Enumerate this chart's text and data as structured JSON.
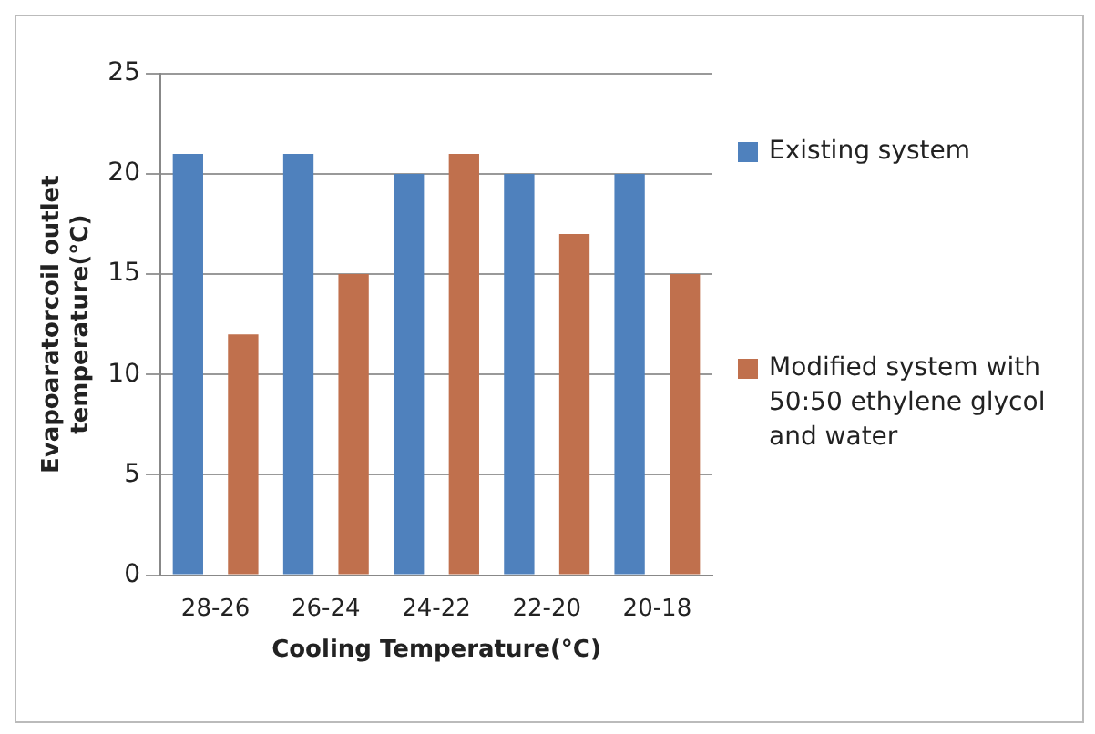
{
  "chart_data": {
    "type": "bar",
    "xlabel": "Cooling Temperature(°C)",
    "ylabel": "Evapoaratorcoil outlet temperature(°C)",
    "categories": [
      "28-26",
      "26-24",
      "24-22",
      "22-20",
      "20-18"
    ],
    "series": [
      {
        "name": "Existing system",
        "color": "#4f81bd",
        "values": [
          21,
          21,
          20,
          20,
          20
        ]
      },
      {
        "name": "Modified system with 50:50 ethylene glycol and water",
        "color": "#c0704d",
        "values": [
          12,
          15,
          21,
          17,
          15
        ]
      }
    ],
    "ylim": [
      0,
      25
    ],
    "yticks": [
      0,
      5,
      10,
      15,
      20,
      25
    ],
    "grid": "y",
    "legend": "right"
  }
}
